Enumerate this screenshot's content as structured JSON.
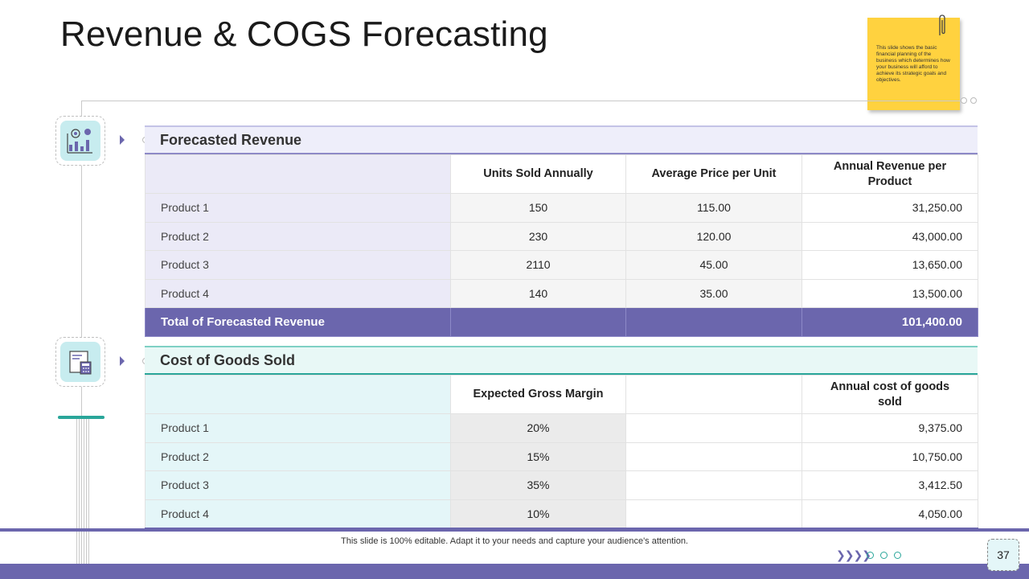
{
  "slide": {
    "title": "Revenue & COGS Forecasting",
    "sticky_note": "This slide shows the basic financial planning of the business which determines how your business will afford to achieve its strategic goals and objectives.",
    "footer_text": "This slide is 100% editable. Adapt it to your needs and capture your audience's attention.",
    "page_number": "37"
  },
  "revenue": {
    "heading": "Forecasted Revenue",
    "columns": [
      "",
      "Units Sold Annually",
      "Average Price per Unit",
      "Annual Revenue per Product"
    ],
    "rows": [
      {
        "product": "Product 1",
        "units": "150",
        "price": "115.00",
        "revenue": "31,250.00"
      },
      {
        "product": "Product 2",
        "units": "230",
        "price": "120.00",
        "revenue": "43,000.00"
      },
      {
        "product": "Product 3",
        "units": "2110",
        "price": "45.00",
        "revenue": "13,650.00"
      },
      {
        "product": "Product 4",
        "units": "140",
        "price": "35.00",
        "revenue": "13,500.00"
      }
    ],
    "total_label": "Total of Forecasted Revenue",
    "total_value": "101,400.00"
  },
  "cogs": {
    "heading": "Cost of Goods Sold",
    "columns": [
      "",
      "Expected Gross Margin",
      "",
      "Annual cost of goods sold"
    ],
    "rows": [
      {
        "product": "Product 1",
        "margin": "20%",
        "cost": "9,375.00"
      },
      {
        "product": "Product 2",
        "margin": "15%",
        "cost": "10,750.00"
      },
      {
        "product": "Product 3",
        "margin": "35%",
        "cost": "3,412.50"
      },
      {
        "product": "Product 4",
        "margin": "10%",
        "cost": "4,050.00"
      }
    ]
  },
  "icons": [
    "revenue-chart-icon",
    "calculator-report-icon",
    "paperclip-icon",
    "chevrons-icon"
  ],
  "colors": {
    "accent_purple": "#6b66ad",
    "accent_teal": "#2aa69a",
    "sticky_yellow": "#ffd23f"
  }
}
